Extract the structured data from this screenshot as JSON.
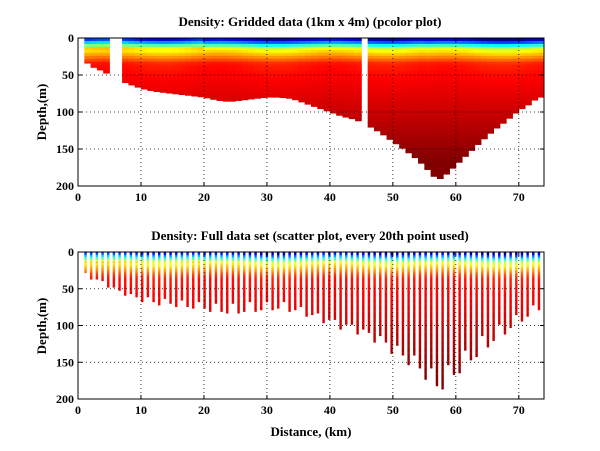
{
  "colors": {
    "background": "#ffffff",
    "colormap": "jet",
    "colormap_stops": [
      "#00008f",
      "#0000ff",
      "#00ffff",
      "#ffff00",
      "#ff0000",
      "#800000"
    ]
  },
  "chart_data": [
    {
      "type": "heatmap",
      "subtype": "pcolor",
      "title": "Density: Gridded data (1km x 4m) (pcolor plot)",
      "xlabel": "",
      "ylabel": "Depth,(m)",
      "xlim": [
        0,
        74
      ],
      "ylim": [
        0,
        200
      ],
      "y_reversed": true,
      "xticks": [
        "0",
        "10",
        "20",
        "30",
        "40",
        "50",
        "60",
        "70"
      ],
      "yticks": [
        "0",
        "50",
        "100",
        "150",
        "200"
      ],
      "grid": "dotted",
      "cell_width_km": 1,
      "cell_height_m": 4,
      "data_start_km": 1,
      "bottom_depth_profile": {
        "distance_km": [
          1,
          2,
          4,
          6,
          8,
          10,
          12,
          14,
          16,
          18,
          20,
          22,
          24,
          26,
          28,
          30,
          32,
          34,
          36,
          38,
          40,
          42,
          44,
          46,
          48,
          50,
          52,
          54,
          56,
          57,
          58,
          60,
          62,
          64,
          66,
          68,
          70,
          72,
          73
        ],
        "depth_m": [
          30,
          38,
          45,
          55,
          62,
          68,
          72,
          74,
          76,
          78,
          80,
          84,
          86,
          84,
          82,
          80,
          80,
          82,
          88,
          94,
          100,
          106,
          110,
          118,
          128,
          140,
          152,
          165,
          182,
          192,
          188,
          172,
          156,
          140,
          125,
          112,
          98,
          88,
          80
        ]
      },
      "gaps_km": [
        [
          5.5,
          6.5
        ],
        [
          45,
          45.7
        ]
      ]
    },
    {
      "type": "scatter",
      "title": "Density: Full data set (scatter plot, every 20th point used)",
      "xlabel": "Distance, (km)",
      "ylabel": "Depth,(m)",
      "xlim": [
        0,
        74
      ],
      "ylim": [
        0,
        200
      ],
      "y_reversed": true,
      "xticks": [
        "0",
        "10",
        "20",
        "30",
        "40",
        "50",
        "60",
        "70"
      ],
      "yticks": [
        "0",
        "50",
        "100",
        "150",
        "200"
      ],
      "grid": "dotted",
      "bottom_depth_profile": {
        "distance_km": [
          1,
          2,
          4,
          6,
          8,
          10,
          12,
          14,
          16,
          18,
          20,
          22,
          24,
          26,
          28,
          30,
          32,
          34,
          36,
          38,
          40,
          42,
          44,
          46,
          48,
          50,
          52,
          54,
          56,
          57,
          58,
          60,
          62,
          64,
          66,
          68,
          70,
          72,
          73
        ],
        "depth_m": [
          30,
          38,
          45,
          55,
          62,
          68,
          72,
          74,
          76,
          78,
          80,
          84,
          86,
          84,
          82,
          80,
          80,
          82,
          88,
          94,
          100,
          106,
          110,
          118,
          128,
          140,
          152,
          165,
          182,
          192,
          188,
          172,
          156,
          140,
          125,
          112,
          98,
          88,
          80
        ]
      },
      "cast_spacing_km": 0.9
    }
  ]
}
